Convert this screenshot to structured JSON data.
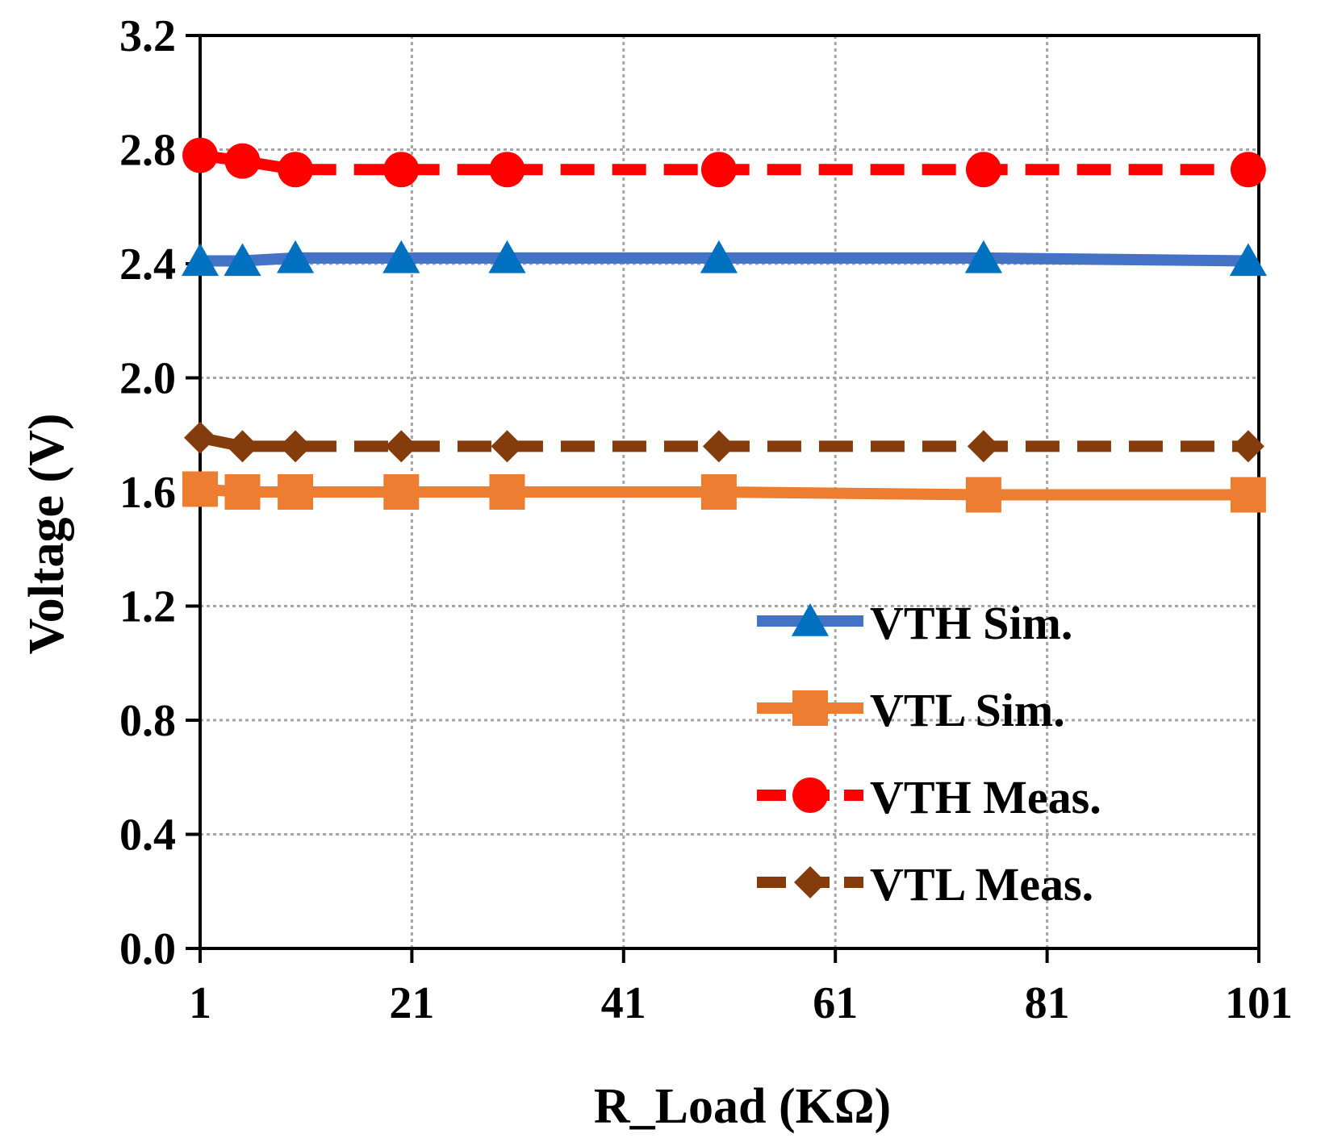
{
  "chart_data": {
    "type": "line",
    "title": "",
    "xlabel": "R_Load (KΩ)",
    "ylabel": "Voltage (V)",
    "xlim": [
      1,
      101
    ],
    "ylim": [
      0,
      3.2
    ],
    "x_ticks": [
      1,
      21,
      41,
      61,
      81,
      101
    ],
    "x_tick_labels": [
      "1",
      "21",
      "41",
      "61",
      "81",
      "101"
    ],
    "y_ticks": [
      0,
      0.4,
      0.8,
      1.2,
      1.6,
      2.0,
      2.4,
      2.8,
      3.2
    ],
    "y_tick_labels": [
      "0.0",
      "0.4",
      "0.8",
      "1.2",
      "1.6",
      "2.0",
      "2.4",
      "2.8",
      "3.2"
    ],
    "grid": true,
    "legend_position": "bottom-right",
    "x": [
      1,
      5,
      10,
      20,
      30,
      50,
      75,
      100
    ],
    "series": [
      {
        "name": "VTH Sim.",
        "values": [
          2.41,
          2.41,
          2.42,
          2.42,
          2.42,
          2.42,
          2.42,
          2.41
        ],
        "line_color": "#4472C4",
        "marker_color": "#0070C0",
        "marker": "triangle",
        "dash": "solid"
      },
      {
        "name": "VTL Sim.",
        "values": [
          1.61,
          1.6,
          1.6,
          1.6,
          1.6,
          1.6,
          1.59,
          1.59
        ],
        "line_color": "#ED7D31",
        "marker_color": "#ED7D31",
        "marker": "square",
        "dash": "solid"
      },
      {
        "name": "VTH Meas.",
        "values": [
          2.78,
          2.76,
          2.73,
          2.73,
          2.73,
          2.73,
          2.73,
          2.73
        ],
        "line_color": "#FF0000",
        "marker_color": "#FF0000",
        "marker": "circle",
        "dash": "dashed"
      },
      {
        "name": "VTL Meas.",
        "values": [
          1.79,
          1.76,
          1.76,
          1.76,
          1.76,
          1.76,
          1.76,
          1.76
        ],
        "line_color": "#843C0C",
        "marker_color": "#843C0C",
        "marker": "diamond",
        "dash": "dashed"
      }
    ]
  }
}
